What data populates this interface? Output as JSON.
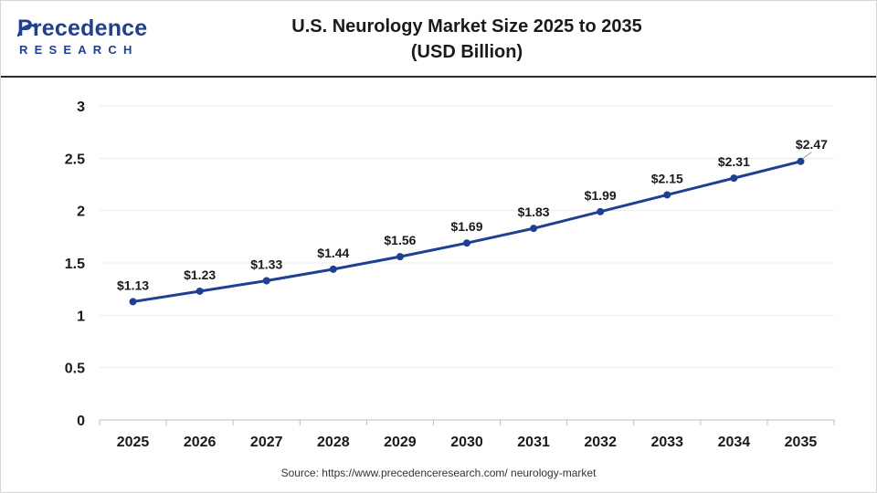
{
  "brand": {
    "name": "Precedence",
    "sub": "RESEARCH",
    "color": "#1f3f93"
  },
  "title": {
    "line1": "U.S. Neurology Market Size 2025 to 2035",
    "line2": "(USD Billion)"
  },
  "source": "Source: https://www.precedenceresearch.com/ neurology-market",
  "chart_data": {
    "type": "line",
    "title": "U.S. Neurology Market Size 2025 to 2035 (USD Billion)",
    "x": [
      2025,
      2026,
      2027,
      2028,
      2029,
      2030,
      2031,
      2032,
      2033,
      2034,
      2035
    ],
    "categories": [
      "2025",
      "2026",
      "2027",
      "2028",
      "2029",
      "2030",
      "2031",
      "2032",
      "2033",
      "2034",
      "2035"
    ],
    "series": [
      {
        "values": [
          1.13,
          1.23,
          1.33,
          1.44,
          1.56,
          1.69,
          1.83,
          1.99,
          2.15,
          2.31,
          2.47
        ],
        "labels": [
          "$1.13",
          "$1.23",
          "$1.33",
          "$1.44",
          "$1.56",
          "$1.69",
          "$1.83",
          "$1.99",
          "$2.15",
          "$2.31",
          "$2.47"
        ],
        "color": "#1f3f93"
      }
    ],
    "ylim": [
      0,
      3
    ],
    "yticks": [
      0,
      0.5,
      1,
      1.5,
      2,
      2.5,
      3
    ],
    "ytick_labels": [
      "0",
      "0.5",
      "1",
      "1.5",
      "2",
      "2.5",
      "3"
    ],
    "grid": true,
    "grid_color": "#ececec",
    "xlabel": "",
    "ylabel": ""
  }
}
